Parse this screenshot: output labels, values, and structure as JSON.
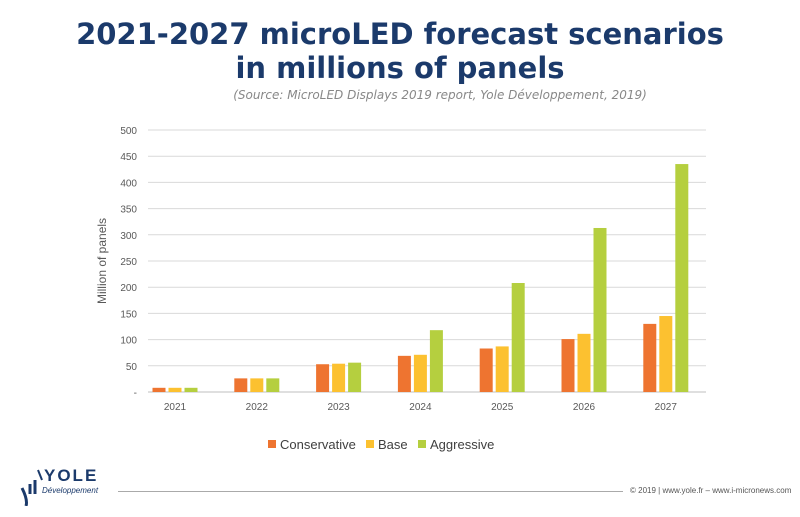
{
  "chart_data": {
    "type": "bar",
    "title": "2021-2027 microLED forecast scenarios",
    "subtitle": "in millions of panels",
    "source": "(Source: MicroLED Displays 2019 report, Yole Développement, 2019)",
    "xlabel": "",
    "ylabel": "Million of panels",
    "ylim": [
      0,
      500
    ],
    "yticks": [
      "-",
      "50",
      "100",
      "150",
      "200",
      "250",
      "300",
      "350",
      "400",
      "450",
      "500"
    ],
    "grid": true,
    "legend_position": "bottom",
    "categories": [
      "2021",
      "2022",
      "2023",
      "2024",
      "2025",
      "2026",
      "2027"
    ],
    "series": [
      {
        "name": "Conservative",
        "color": "#ee7430",
        "values": [
          8,
          26,
          53,
          69,
          83,
          101,
          130
        ]
      },
      {
        "name": "Base",
        "color": "#fcc130",
        "values": [
          8,
          26,
          54,
          71,
          87,
          111,
          145
        ]
      },
      {
        "name": "Aggressive",
        "color": "#b5cf3f",
        "values": [
          8,
          26,
          56,
          118,
          208,
          313,
          435
        ]
      }
    ]
  },
  "footer": {
    "logo": "YOLE Développement",
    "logo_name": "YOLE",
    "logo_sub": "Développement",
    "copyright": "© 2019 | www.yole.fr – www.i-micronews.com"
  }
}
